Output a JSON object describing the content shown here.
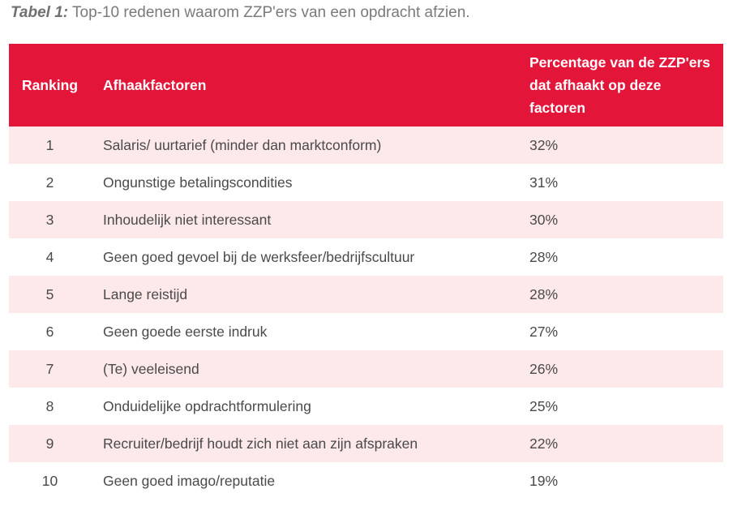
{
  "caption": {
    "label": "Tabel 1:",
    "text": " Top-10 redenen waarom ZZP'ers van een opdracht afzien."
  },
  "colors": {
    "header_bg": "#e3163a",
    "row_alt_bg": "#fde8ea",
    "header_text": "#ffffff"
  },
  "table": {
    "headers": {
      "ranking": "Ranking",
      "factor": "Afhaakfactoren",
      "percentage": "Percentage van de ZZP'ers dat afhaakt op deze factoren"
    },
    "rows": [
      {
        "rank": "1",
        "factor": "Salaris/ uurtarief (minder dan marktconform)",
        "pct": "32%"
      },
      {
        "rank": "2",
        "factor": "Ongunstige betalingscondities",
        "pct": "31%"
      },
      {
        "rank": "3",
        "factor": "Inhoudelijk niet interessant",
        "pct": "30%"
      },
      {
        "rank": "4",
        "factor": "Geen goed gevoel bij de werksfeer/bedrijfscultuur",
        "pct": "28%"
      },
      {
        "rank": "5",
        "factor": "Lange reistijd",
        "pct": "28%"
      },
      {
        "rank": "6",
        "factor": "Geen goede eerste indruk",
        "pct": "27%"
      },
      {
        "rank": "7",
        "factor": "(Te) veeleisend",
        "pct": "26%"
      },
      {
        "rank": "8",
        "factor": "Onduidelijke opdrachtformulering",
        "pct": "25%"
      },
      {
        "rank": "9",
        "factor": "Recruiter/bedrijf houdt zich niet aan zijn afspraken",
        "pct": "22%"
      },
      {
        "rank": "10",
        "factor": "Geen goed imago/reputatie",
        "pct": "19%"
      }
    ]
  }
}
